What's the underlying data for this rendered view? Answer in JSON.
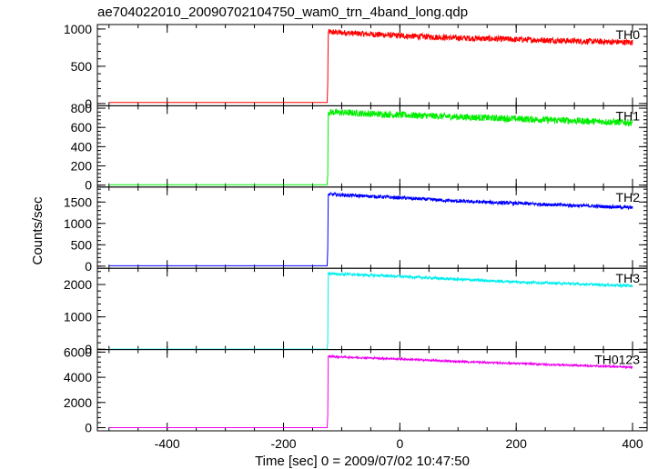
{
  "title": "ae704022010_20090702104750_wam0_trn_4band_long.qdp",
  "chart_data": {
    "type": "line",
    "title": "ae704022010_20090702104750_wam0_trn_4band_long.qdp",
    "xlabel": "Time [sec] 0 = 2009/07/02 10:47:50",
    "ylabel": "Counts/sec",
    "xlim": [
      -520,
      425
    ],
    "x_ticks": [
      -400,
      -200,
      0,
      200,
      400
    ],
    "grid": false,
    "panels": [
      {
        "name": "TH0",
        "color": "#ff0000",
        "ylim": [
          -30,
          1060
        ],
        "y_ticks": [
          0,
          500,
          1000
        ],
        "x": [
          -500,
          -125,
          -124,
          -123,
          0,
          100,
          200,
          300,
          400
        ],
        "y": [
          15,
          15,
          270,
          960,
          910,
          880,
          860,
          840,
          820
        ],
        "noise": 40
      },
      {
        "name": "TH1",
        "color": "#00ee00",
        "ylim": [
          -20,
          825
        ],
        "y_ticks": [
          0,
          200,
          400,
          600,
          800
        ],
        "x": [
          -500,
          -125,
          -124,
          -123,
          0,
          100,
          200,
          300,
          400
        ],
        "y": [
          5,
          5,
          100,
          760,
          730,
          710,
          690,
          670,
          650
        ],
        "noise": 35
      },
      {
        "name": "TH2",
        "color": "#0000ff",
        "ylim": [
          -50,
          1850
        ],
        "y_ticks": [
          0,
          500,
          1000,
          1500
        ],
        "x": [
          -500,
          -125,
          -124,
          -123,
          0,
          100,
          200,
          300,
          400
        ],
        "y": [
          10,
          10,
          400,
          1680,
          1600,
          1520,
          1470,
          1420,
          1370
        ],
        "noise": 40
      },
      {
        "name": "TH3",
        "color": "#00eeee",
        "ylim": [
          -10,
          2500
        ],
        "y_ticks": [
          0,
          1000,
          2000
        ],
        "x": [
          -500,
          -125,
          -124,
          -123,
          0,
          100,
          200,
          300,
          400
        ],
        "y": [
          5,
          5,
          200,
          2340,
          2250,
          2160,
          2080,
          2020,
          1960
        ],
        "noise": 40
      },
      {
        "name": "TH0123",
        "color": "#ee00ee",
        "ylim": [
          -250,
          6200
        ],
        "y_ticks": [
          0,
          2000,
          4000,
          6000
        ],
        "x": [
          -500,
          -125,
          -124,
          -123,
          0,
          100,
          200,
          300,
          400
        ],
        "y": [
          0,
          0,
          900,
          5650,
          5450,
          5250,
          5100,
          4950,
          4800
        ],
        "noise": 70
      }
    ]
  }
}
